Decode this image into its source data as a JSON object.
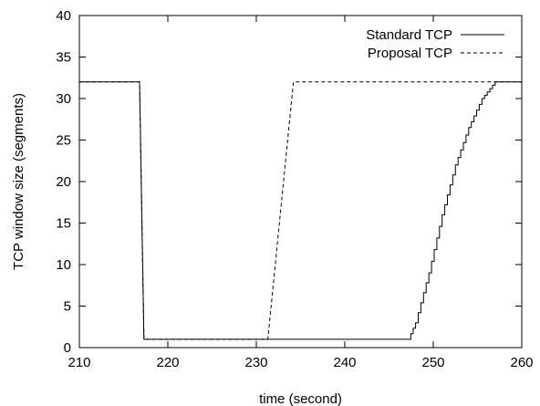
{
  "chart_data": {
    "type": "line",
    "xlabel": "time (second)",
    "ylabel": "TCP window size (segments)",
    "xlim": [
      210,
      260
    ],
    "ylim": [
      0,
      40
    ],
    "xticks": [
      210,
      220,
      230,
      240,
      250,
      260
    ],
    "yticks": [
      0,
      5,
      10,
      15,
      20,
      25,
      30,
      35,
      40
    ],
    "grid": false,
    "legend_position": "top-right",
    "series": [
      {
        "name": "Standard TCP",
        "style": "solid",
        "color": "#000000",
        "points": [
          [
            210,
            32
          ],
          [
            216.8,
            32
          ],
          [
            217.3,
            1
          ],
          [
            247.2,
            1
          ],
          [
            248,
            3
          ],
          [
            249.5,
            9
          ],
          [
            251,
            16
          ],
          [
            252.5,
            22
          ],
          [
            254,
            26.5
          ],
          [
            255.5,
            30
          ],
          [
            257,
            32
          ],
          [
            260,
            32
          ]
        ]
      },
      {
        "name": "Proposal TCP",
        "style": "dashed",
        "color": "#000000",
        "points": [
          [
            210,
            32
          ],
          [
            216.8,
            32
          ],
          [
            217.3,
            1
          ],
          [
            231.3,
            1
          ],
          [
            234.2,
            32
          ],
          [
            260,
            32
          ]
        ]
      }
    ]
  }
}
